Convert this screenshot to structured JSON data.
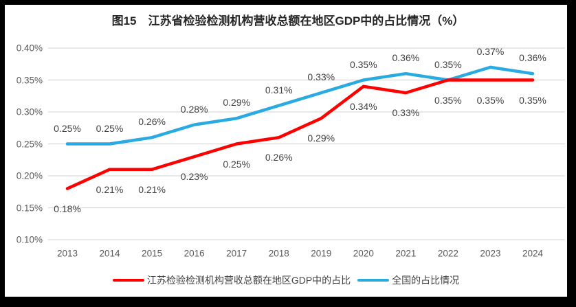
{
  "title": "图15　江苏省检验检测机构营收总额在地区GDP中的占比情况（%）",
  "chart_data": {
    "type": "line",
    "categories": [
      "2013",
      "2014",
      "2015",
      "2016",
      "2017",
      "2018",
      "2019",
      "2020",
      "2021",
      "2022",
      "2023",
      "2024"
    ],
    "series": [
      {
        "name": "江苏检验检测机构营收总额在地区GDP中的占比",
        "color": "#ff0000",
        "label_position": "below",
        "values": [
          0.18,
          0.21,
          0.21,
          0.23,
          0.25,
          0.26,
          0.29,
          0.34,
          0.33,
          0.35,
          0.35,
          0.35
        ],
        "labels": [
          "0.18%",
          "0.21%",
          "0.21%",
          "0.23%",
          "0.25%",
          "0.26%",
          "0.29%",
          "0.34%",
          "0.33%",
          "0.35%",
          "0.35%",
          "0.35%"
        ]
      },
      {
        "name": "全国的占比情况",
        "color": "#29abe2",
        "label_position": "above",
        "values": [
          0.25,
          0.25,
          0.26,
          0.28,
          0.29,
          0.31,
          0.33,
          0.35,
          0.36,
          0.35,
          0.37,
          0.36
        ],
        "labels": [
          "0.25%",
          "0.25%",
          "0.26%",
          "0.28%",
          "0.29%",
          "0.31%",
          "0.33%",
          "0.35%",
          "0.36%",
          "0.35%",
          "0.37%",
          "0.36%"
        ]
      }
    ],
    "ylim": [
      0.1,
      0.4
    ],
    "yticks": [
      "0.40%",
      "0.35%",
      "0.30%",
      "0.25%",
      "0.20%",
      "0.15%",
      "0.10%"
    ],
    "grid": "horizontal",
    "legend_position": "bottom"
  },
  "colors": {
    "gridline": "#d9d9d9",
    "axis_text": "#595959",
    "data_label_text": "#404040",
    "frame": "#000000",
    "surface": "#ffffff"
  }
}
